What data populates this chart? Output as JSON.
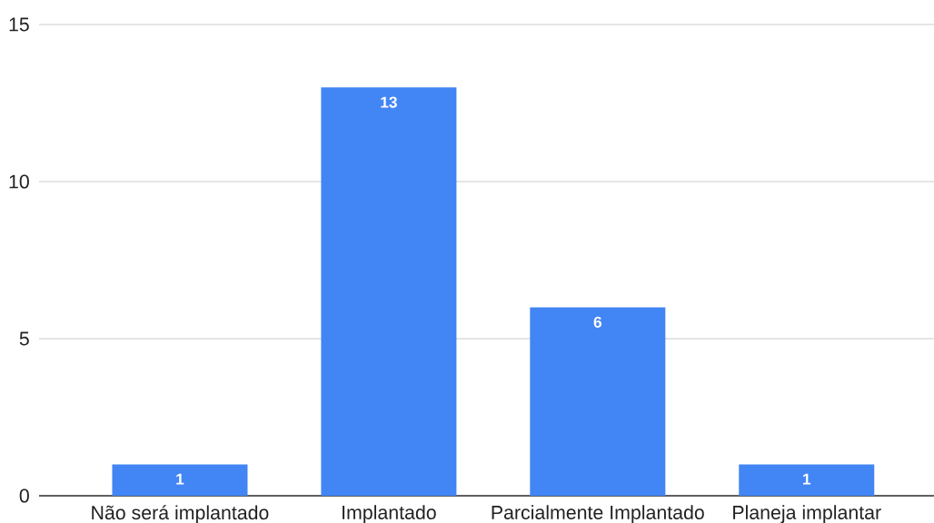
{
  "chart_data": {
    "type": "bar",
    "categories": [
      "Não será implantado",
      "Implantado",
      "Parcialmente Implantado",
      "Planeja implantar"
    ],
    "values": [
      1,
      13,
      6,
      1
    ],
    "color": "#4285f4",
    "ylim": [
      0,
      15
    ],
    "yticks": [
      0,
      5,
      10,
      15
    ],
    "grid": "y",
    "data_labels": true
  }
}
